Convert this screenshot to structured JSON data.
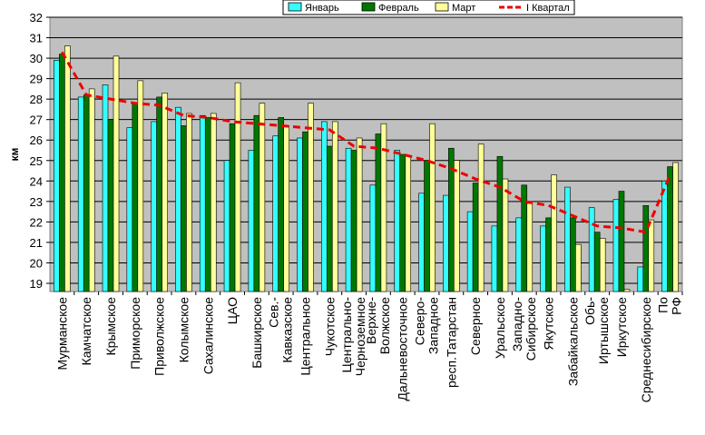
{
  "chart_data": {
    "type": "bar",
    "title": "",
    "xlabel": "",
    "ylabel": "км",
    "ylim": [
      18.6,
      32
    ],
    "yticks": [
      19,
      20,
      21,
      22,
      23,
      24,
      25,
      26,
      27,
      28,
      29,
      30,
      31,
      32
    ],
    "grid": true,
    "legend_position": "top",
    "categories": [
      "Мурманское",
      "Камчатское",
      "Крымское",
      "Приморское",
      "Приволжское",
      "Колымское",
      "Сахалинское",
      "ЦАО",
      "Башкирское",
      "Сев.- Кавказское",
      "Центральное",
      "Чукотское",
      "Центрально- Черноземное",
      "Верхне- Волжское",
      "Дальневосточное",
      "Северо- Западное",
      "респ.Татарстан",
      "Северное",
      "Уральское",
      "Западно- Сибирское",
      "Якутское",
      "Забайкальское",
      "Обь- Иртышское",
      "Иркутское",
      "Среднесибирское",
      "По РФ"
    ],
    "series": [
      {
        "name": "Январь",
        "kind": "bar",
        "color": "#33ffff",
        "values": [
          29.9,
          28.1,
          28.7,
          26.6,
          26.9,
          27.6,
          27.2,
          25.0,
          25.5,
          26.2,
          26.1,
          26.9,
          25.6,
          23.8,
          25.5,
          23.4,
          23.3,
          22.5,
          21.8,
          22.2,
          21.8,
          23.7,
          22.7,
          23.1,
          19.8,
          24.0
        ]
      },
      {
        "name": "Февраль",
        "kind": "bar",
        "color": "#007700",
        "values": [
          30.2,
          28.2,
          27.0,
          27.8,
          28.1,
          26.7,
          27.1,
          26.8,
          27.2,
          27.1,
          26.4,
          25.7,
          25.5,
          26.3,
          25.3,
          25.0,
          25.6,
          23.9,
          25.2,
          23.8,
          22.2,
          22.2,
          21.5,
          23.5,
          22.8,
          24.7
        ]
      },
      {
        "name": "Март",
        "kind": "bar",
        "color": "#ffff99",
        "values": [
          30.6,
          28.5,
          30.1,
          28.9,
          28.3,
          27.3,
          27.3,
          28.8,
          27.8,
          26.7,
          27.8,
          26.9,
          26.1,
          26.8,
          25.2,
          26.8,
          25.0,
          25.8,
          24.1,
          22.9,
          24.3,
          20.9,
          21.2,
          18.7,
          22.1,
          24.9
        ]
      },
      {
        "name": "I Квартал",
        "kind": "line",
        "color": "#ee0000",
        "style": "dashed",
        "values": [
          30.3,
          28.2,
          28.0,
          27.8,
          27.7,
          27.2,
          27.1,
          26.9,
          26.8,
          26.7,
          26.6,
          26.5,
          25.7,
          25.6,
          25.3,
          25.0,
          24.6,
          24.1,
          23.7,
          23.0,
          22.8,
          22.3,
          21.8,
          21.7,
          21.5,
          24.3
        ]
      }
    ]
  }
}
